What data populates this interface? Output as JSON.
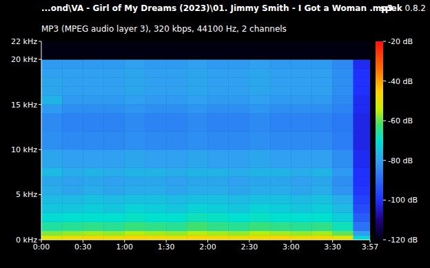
{
  "chart_data": {
    "type": "heatmap",
    "title": "...ond\\VA - Girl of My Dreams (2023)\\01. Jimmy Smith - I Got a Woman .mp3",
    "subtitle": "MP3 (MPEG audio layer 3), 320 kbps, 44100 Hz, 2 channels",
    "app": "spek",
    "app_version": "0.8.2",
    "x_edges": [
      0,
      15,
      30,
      45,
      60,
      75,
      90,
      105,
      120,
      135,
      150,
      165,
      180,
      195,
      210,
      225,
      237
    ],
    "y_edges": [
      0,
      0.5,
      1,
      2,
      3,
      4,
      5,
      6,
      7,
      8,
      10,
      12,
      14,
      15,
      16,
      17,
      18,
      19,
      20,
      22
    ],
    "cells": [
      [
        -50,
        -48,
        -47,
        -48,
        -46,
        -47,
        -48,
        -46,
        -47,
        -48,
        -47,
        -46,
        -48,
        -47,
        -50,
        -72
      ],
      [
        -58,
        -57,
        -56,
        -57,
        -55,
        -56,
        -57,
        -55,
        -56,
        -57,
        -55,
        -56,
        -57,
        -56,
        -60,
        -80
      ],
      [
        -66,
        -65,
        -64,
        -65,
        -63,
        -64,
        -65,
        -62,
        -64,
        -65,
        -63,
        -64,
        -65,
        -64,
        -68,
        -88
      ],
      [
        -71,
        -70,
        -70,
        -70,
        -69,
        -70,
        -70,
        -68,
        -69,
        -70,
        -69,
        -70,
        -70,
        -70,
        -73,
        -92
      ],
      [
        -74,
        -74,
        -73,
        -74,
        -72,
        -73,
        -74,
        -72,
        -73,
        -74,
        -72,
        -73,
        -74,
        -73,
        -76,
        -95
      ],
      [
        -76,
        -76,
        -75,
        -76,
        -75,
        -75,
        -76,
        -75,
        -75,
        -76,
        -75,
        -75,
        -76,
        -75,
        -78,
        -97
      ],
      [
        -78,
        -79,
        -78,
        -79,
        -78,
        -78,
        -79,
        -78,
        -78,
        -79,
        -78,
        -78,
        -79,
        -78,
        -82,
        -99
      ],
      [
        -79,
        -80,
        -79,
        -80,
        -79,
        -79,
        -80,
        -79,
        -79,
        -80,
        -79,
        -79,
        -80,
        -79,
        -83,
        -100
      ],
      [
        -76,
        -78,
        -77,
        -78,
        -77,
        -77,
        -78,
        -77,
        -77,
        -78,
        -77,
        -77,
        -78,
        -77,
        -81,
        -100
      ],
      [
        -79,
        -80,
        -80,
        -80,
        -79,
        -80,
        -80,
        -79,
        -80,
        -80,
        -79,
        -80,
        -80,
        -80,
        -83,
        -101
      ],
      [
        -83,
        -84,
        -84,
        -84,
        -83,
        -84,
        -84,
        -83,
        -84,
        -84,
        -83,
        -84,
        -84,
        -84,
        -86,
        -102
      ],
      [
        -84,
        -85,
        -85,
        -85,
        -84,
        -85,
        -85,
        -84,
        -85,
        -85,
        -84,
        -85,
        -85,
        -85,
        -87,
        -102
      ],
      [
        -81,
        -83,
        -83,
        -83,
        -82,
        -83,
        -83,
        -82,
        -83,
        -83,
        -82,
        -83,
        -83,
        -83,
        -85,
        -101
      ],
      [
        -77,
        -81,
        -81,
        -81,
        -80,
        -81,
        -81,
        -80,
        -81,
        -81,
        -80,
        -81,
        -81,
        -81,
        -84,
        -101
      ],
      [
        -79,
        -80,
        -80,
        -80,
        -79,
        -80,
        -80,
        -79,
        -80,
        -80,
        -79,
        -80,
        -80,
        -80,
        -83,
        -100
      ],
      [
        -79,
        -80,
        -80,
        -80,
        -79,
        -80,
        -80,
        -79,
        -80,
        -80,
        -79,
        -80,
        -80,
        -80,
        -83,
        -100
      ],
      [
        -80,
        -80,
        -80,
        -80,
        -79,
        -80,
        -80,
        -79,
        -80,
        -80,
        -79,
        -80,
        -80,
        -80,
        -83,
        -100
      ],
      [
        -81,
        -81,
        -81,
        -81,
        -80,
        -81,
        -81,
        -80,
        -81,
        -81,
        -80,
        -81,
        -81,
        -81,
        -84,
        -101
      ],
      [
        -120,
        -120,
        -120,
        -120,
        -120,
        -120,
        -120,
        -120,
        -120,
        -120,
        -120,
        -120,
        -120,
        -120,
        -120,
        -120
      ]
    ],
    "xlim": [
      0,
      237
    ],
    "xticks": [
      {
        "value": 0,
        "label": "0:00"
      },
      {
        "value": 30,
        "label": "0:30"
      },
      {
        "value": 60,
        "label": "1:00"
      },
      {
        "value": 90,
        "label": "1:30"
      },
      {
        "value": 120,
        "label": "2:00"
      },
      {
        "value": 150,
        "label": "2:30"
      },
      {
        "value": 180,
        "label": "3:00"
      },
      {
        "value": 210,
        "label": "3:30"
      },
      {
        "value": 237,
        "label": "3:57"
      }
    ],
    "ylim": [
      0,
      22
    ],
    "yticks": [
      {
        "value": 0,
        "label": "0 kHz"
      },
      {
        "value": 5,
        "label": "5 kHz"
      },
      {
        "value": 10,
        "label": "10 kHz"
      },
      {
        "value": 15,
        "label": "15 kHz"
      },
      {
        "value": 20,
        "label": "20 kHz"
      },
      {
        "value": 22,
        "label": "22 kHz"
      }
    ],
    "colorbar": {
      "range": [
        -120,
        -20
      ],
      "ticks": [
        {
          "value": -20,
          "label": "-20 dB"
        },
        {
          "value": -40,
          "label": "-40 dB"
        },
        {
          "value": -60,
          "label": "-60 dB"
        },
        {
          "value": -80,
          "label": "-80 dB"
        },
        {
          "value": -100,
          "label": "-100 dB"
        },
        {
          "value": -120,
          "label": "-120 dB"
        }
      ]
    }
  }
}
